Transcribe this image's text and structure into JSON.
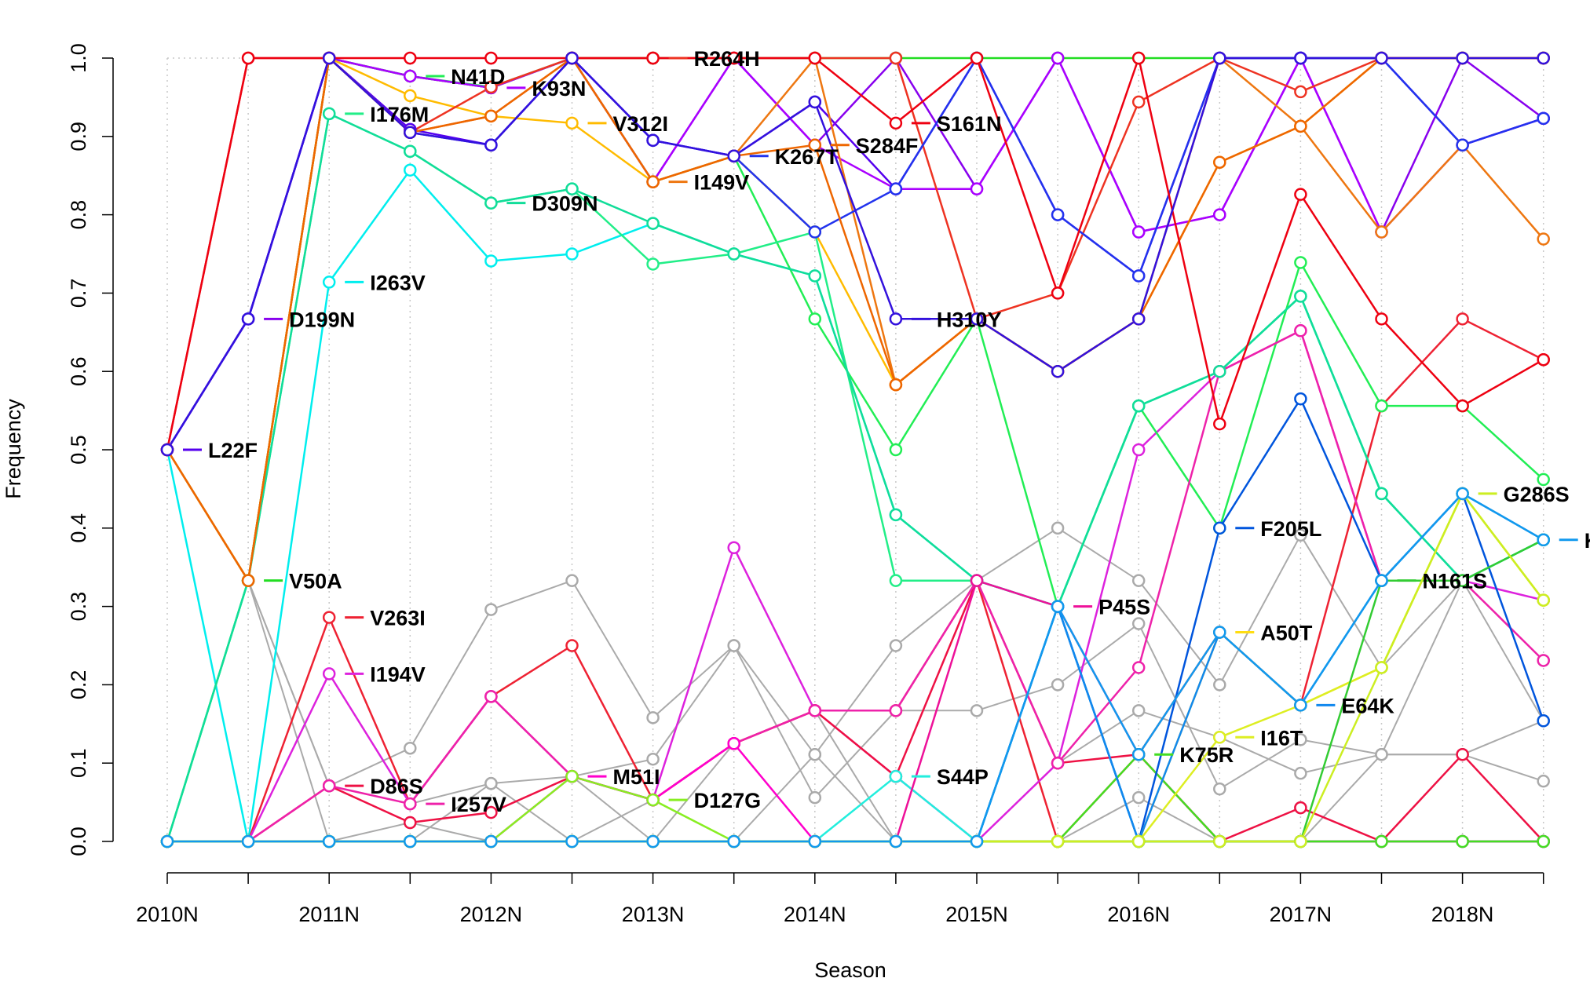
{
  "chart_data": {
    "type": "line",
    "title": "",
    "xlabel": "Season",
    "ylabel": "Frequency",
    "x_ticks": [
      "2010N",
      "2011N",
      "2012N",
      "2013N",
      "2014N",
      "2015N",
      "2016N",
      "2017N",
      "2018N"
    ],
    "y_ticks": [
      "0.0",
      "0.1",
      "0.2",
      "0.3",
      "0.4",
      "0.5",
      "0.6",
      "0.7",
      "0.8",
      "0.9",
      "1.0"
    ],
    "x_positions": 18,
    "ylim": [
      0,
      1
    ],
    "grid": "vertical dotted at each season position",
    "series": [
      {
        "name": "L22F",
        "color": "#5500ee",
        "label_at": 0,
        "values": [
          0.5,
          0.667,
          1.0,
          0.909,
          0.889,
          1.0,
          0.895,
          0.875,
          0.944,
          0.833,
          1.0,
          0.8,
          0.722,
          1.0,
          1.0,
          1.0,
          0.889,
          0.923
        ]
      },
      {
        "name": "D199N",
        "color": "#8800ee",
        "label_at": 1,
        "values": [
          0.5,
          0.667,
          1.0,
          0.977,
          0.962,
          1.0,
          0.842,
          1.0,
          0.889,
          1.0,
          0.833,
          1.0,
          0.778,
          0.8,
          1.0,
          0.778,
          1.0,
          0.923
        ]
      },
      {
        "name": "V50A",
        "color": "#22dd22",
        "label_at": 1,
        "values": [
          0.5,
          0.333,
          1.0,
          0.977,
          0.962,
          1.0,
          1.0,
          1.0,
          1.0,
          1.0,
          1.0,
          1.0,
          1.0,
          1.0,
          1.0,
          1.0,
          1.0,
          1.0
        ]
      },
      {
        "name": "I263V",
        "color": "#00eeee",
        "label_at": 2,
        "values": [
          0.5,
          0.0,
          0.714,
          0.857,
          0.741,
          0.75,
          0.789,
          0.75,
          0.722,
          0.417,
          0.333,
          0.3,
          0.556,
          0.6,
          0.696,
          0.444,
          0.333,
          0.385
        ]
      },
      {
        "name": "V263I",
        "color": "#ee2233",
        "label_at": 2,
        "values": [
          0.0,
          0.0,
          0.286,
          0.048,
          0.185,
          0.25,
          0.053,
          0.125,
          0.167,
          0.167,
          0.333,
          0.0,
          0.111,
          0.267,
          0.174,
          0.556,
          0.667,
          0.615
        ]
      },
      {
        "name": "I194V",
        "color": "#dd22dd",
        "label_at": 2,
        "values": [
          0.0,
          0.0,
          0.214,
          0.048,
          0.185,
          0.083,
          0.053,
          0.375,
          0.167,
          0.083,
          0.0,
          0.1,
          0.5,
          0.6,
          0.652,
          0.333,
          0.333,
          0.308
        ]
      },
      {
        "name": "D86S",
        "color": "#ee1144",
        "label_at": 2,
        "values": [
          0.0,
          0.0,
          0.071,
          0.024,
          0.037,
          0.083,
          0.053,
          0.125,
          0.167,
          0.083,
          0.333,
          0.1,
          0.111,
          0.0,
          0.043,
          0.0,
          0.111,
          0.0
        ]
      },
      {
        "name": "N41D",
        "color": "#22ee55",
        "label_at": 3,
        "values": [
          0.0,
          0.333,
          1.0,
          0.977,
          0.963,
          1.0,
          0.842,
          0.875,
          0.667,
          0.5,
          0.667,
          0.3,
          0.556,
          0.4,
          0.739,
          0.556,
          0.556,
          0.462
        ]
      },
      {
        "name": "I176M",
        "color": "#22ee88",
        "label_at": 2,
        "values": [
          0.0,
          0.333,
          0.929,
          0.881,
          0.815,
          0.833,
          0.737,
          0.75,
          0.778,
          0.333,
          0.333,
          0.3,
          0.556,
          0.6,
          0.696,
          0.444,
          0.333,
          0.385
        ]
      },
      {
        "name": "K93N",
        "color": "#aa00ff",
        "label_at": 4,
        "values": [
          0.5,
          0.667,
          1.0,
          0.977,
          0.962,
          1.0,
          0.842,
          1.0,
          0.889,
          0.833,
          0.833,
          1.0,
          0.778,
          0.8,
          1.0,
          0.778,
          0.889,
          0.923
        ]
      },
      {
        "name": "I257V",
        "color": "#ee22aa",
        "label_at": 3,
        "values": [
          0.0,
          0.0,
          0.071,
          0.048,
          0.185,
          0.083,
          0.053,
          0.125,
          0.167,
          0.167,
          0.333,
          0.1,
          0.222,
          0.6,
          0.652,
          0.333,
          0.333,
          0.231
        ]
      },
      {
        "name": "V312I",
        "color": "#ffbb00",
        "label_at": 5,
        "values": [
          0.5,
          0.333,
          1.0,
          0.952,
          0.926,
          0.917,
          0.842,
          0.875,
          0.778,
          0.583,
          0.667,
          0.6,
          0.667,
          0.867,
          0.913,
          1.0,
          1.0,
          1.0
        ]
      },
      {
        "name": "D309N",
        "color": "#11dd99",
        "label_at": 4,
        "values": [
          0.0,
          0.333,
          0.929,
          0.881,
          0.815,
          0.833,
          0.789,
          0.75,
          0.722,
          0.417,
          0.333,
          0.3,
          0.556,
          0.6,
          0.696,
          0.444,
          0.333,
          0.385
        ]
      },
      {
        "name": "R264H",
        "color": "#ee3322",
        "label_at": 6,
        "values": [
          0.5,
          1.0,
          1.0,
          0.905,
          0.963,
          1.0,
          1.0,
          1.0,
          1.0,
          1.0,
          0.667,
          0.7,
          0.944,
          1.0,
          0.957,
          1.0,
          1.0,
          1.0
        ]
      },
      {
        "name": "I149V",
        "color": "#ee7711",
        "label_at": 6,
        "values": [
          0.5,
          0.333,
          1.0,
          0.905,
          0.926,
          1.0,
          0.842,
          0.875,
          1.0,
          0.583,
          0.667,
          0.6,
          0.667,
          1.0,
          0.913,
          0.778,
          0.889,
          0.769
        ]
      },
      {
        "name": "K267T",
        "color": "#2233ee",
        "label_at": 7,
        "values": [
          0.5,
          0.667,
          1.0,
          0.905,
          0.889,
          1.0,
          0.895,
          0.875,
          0.778,
          0.833,
          1.0,
          0.8,
          0.722,
          1.0,
          1.0,
          1.0,
          0.889,
          0.923
        ]
      },
      {
        "name": "S284F",
        "color": "#ee6600",
        "label_at": 8,
        "values": [
          0.5,
          0.333,
          1.0,
          0.905,
          0.926,
          1.0,
          0.842,
          0.875,
          0.889,
          0.583,
          0.667,
          0.6,
          0.667,
          0.867,
          0.913,
          1.0,
          1.0,
          1.0
        ]
      },
      {
        "name": "S161N",
        "color": "#ee0011",
        "label_at": 9,
        "values": [
          0.5,
          1.0,
          1.0,
          1.0,
          1.0,
          1.0,
          1.0,
          1.0,
          1.0,
          0.917,
          1.0,
          0.7,
          1.0,
          0.533,
          0.826,
          0.667,
          0.556,
          0.615
        ]
      },
      {
        "name": "H310Y",
        "color": "#3311dd",
        "label_at": 9,
        "values": [
          0.5,
          0.667,
          1.0,
          0.905,
          0.889,
          1.0,
          0.895,
          0.875,
          0.944,
          0.667,
          0.667,
          0.6,
          0.667,
          1.0,
          1.0,
          1.0,
          1.0,
          1.0
        ]
      },
      {
        "name": "M51I",
        "color": "#ff00cc",
        "label_at": 5,
        "values": [
          0.0,
          0.0,
          0.0,
          0.0,
          0.0,
          0.083,
          0.053,
          0.125,
          0.0,
          0.0,
          0.0,
          0.0,
          0.0,
          0.0,
          0.0,
          0.0,
          0.0,
          0.0
        ]
      },
      {
        "name": "D127G",
        "color": "#88ee22",
        "label_at": 6,
        "values": [
          0.0,
          0.0,
          0.0,
          0.0,
          0.0,
          0.083,
          0.053,
          0.0,
          0.0,
          0.0,
          0.0,
          0.0,
          0.0,
          0.0,
          0.0,
          0.0,
          0.0,
          0.0
        ]
      },
      {
        "name": "S44P",
        "color": "#22eedd",
        "label_at": 9,
        "values": [
          0.0,
          0.0,
          0.0,
          0.0,
          0.0,
          0.0,
          0.0,
          0.0,
          0.0,
          0.083,
          0.0,
          0.3,
          0.0,
          0.0,
          0.0,
          0.0,
          0.0,
          0.0
        ]
      },
      {
        "name": "P45S",
        "color": "#ee1199",
        "label_at": 11,
        "values": [
          0.0,
          0.0,
          0.0,
          0.0,
          0.0,
          0.0,
          0.0,
          0.0,
          0.0,
          0.0,
          0.333,
          0.3,
          0.111,
          0.0,
          0.0,
          0.0,
          0.0,
          0.0
        ]
      },
      {
        "name": "K75R",
        "color": "#44dd22",
        "label_at": 12,
        "values": [
          0.0,
          0.0,
          0.0,
          0.0,
          0.0,
          0.0,
          0.0,
          0.0,
          0.0,
          0.0,
          0.0,
          0.0,
          0.111,
          0.0,
          0.0,
          0.0,
          0.0,
          0.0
        ]
      },
      {
        "name": "F205L",
        "color": "#0055dd",
        "label_at": 13,
        "values": [
          0.0,
          0.0,
          0.0,
          0.0,
          0.0,
          0.0,
          0.0,
          0.0,
          0.0,
          0.0,
          0.0,
          0.3,
          0.0,
          0.4,
          0.565,
          0.333,
          0.444,
          0.154
        ]
      },
      {
        "name": "A50T",
        "color": "#ffdd11",
        "label_at": 13,
        "values": [
          0.0,
          0.0,
          0.0,
          0.0,
          0.0,
          0.0,
          0.0,
          0.0,
          0.0,
          0.0,
          0.0,
          0.0,
          0.0,
          0.267,
          0.174,
          0.222,
          0.444,
          0.308
        ]
      },
      {
        "name": "I16T",
        "color": "#ddee22",
        "label_at": 13,
        "values": [
          0.0,
          0.0,
          0.0,
          0.0,
          0.0,
          0.0,
          0.0,
          0.0,
          0.0,
          0.0,
          0.0,
          0.0,
          0.0,
          0.133,
          0.174,
          0.222,
          0.444,
          0.308
        ]
      },
      {
        "name": "E64K",
        "color": "#1188ee",
        "label_at": 14,
        "values": [
          0.0,
          0.0,
          0.0,
          0.0,
          0.0,
          0.0,
          0.0,
          0.0,
          0.0,
          0.0,
          0.0,
          0.3,
          0.0,
          0.267,
          0.174,
          0.333,
          0.444,
          0.385
        ]
      },
      {
        "name": "N161S",
        "color": "#33cc33",
        "label_at": 15,
        "values": [
          0.0,
          0.0,
          0.0,
          0.0,
          0.0,
          0.0,
          0.0,
          0.0,
          0.0,
          0.0,
          0.0,
          0.0,
          0.0,
          0.0,
          0.0,
          0.333,
          0.333,
          0.385
        ]
      },
      {
        "name": "G286S",
        "color": "#ccee22",
        "label_at": 16,
        "values": [
          0.0,
          0.0,
          0.0,
          0.0,
          0.0,
          0.0,
          0.0,
          0.0,
          0.0,
          0.0,
          0.0,
          0.0,
          0.0,
          0.0,
          0.0,
          0.222,
          0.444,
          0.308
        ]
      },
      {
        "name": "K",
        "color": "#1199ee",
        "label_at": 17,
        "values": [
          0.0,
          0.0,
          0.0,
          0.0,
          0.0,
          0.0,
          0.0,
          0.0,
          0.0,
          0.0,
          0.0,
          0.3,
          0.111,
          0.267,
          0.174,
          0.333,
          0.444,
          0.385
        ]
      }
    ],
    "background_series": {
      "color": "#aaaaaa",
      "series": [
        [
          0.0,
          0.333,
          0.071,
          0.119,
          0.296,
          0.333,
          0.158,
          0.25,
          0.111,
          0.25,
          0.333,
          0.4,
          0.333,
          0.2,
          0.391,
          0.222,
          0.333,
          0.231
        ],
        [
          0.0,
          0.333,
          0.071,
          0.048,
          0.074,
          0.083,
          0.105,
          0.25,
          0.056,
          0.167,
          0.167,
          0.2,
          0.278,
          0.067,
          0.13,
          0.111,
          0.111,
          0.154
        ],
        [
          0.0,
          0.0,
          0.0,
          0.024,
          0.0,
          0.083,
          0.0,
          0.125,
          0.167,
          0.0,
          0.333,
          0.1,
          0.167,
          0.133,
          0.087,
          0.111,
          0.111,
          0.077
        ],
        [
          0.5,
          0.333,
          0.0,
          0.0,
          0.0,
          0.0,
          0.0,
          0.0,
          0.0,
          0.0,
          0.0,
          0.0,
          0.056,
          0.0,
          0.043,
          0.0,
          0.0,
          0.0
        ],
        [
          0.0,
          0.0,
          0.0,
          0.0,
          0.074,
          0.0,
          0.053,
          0.0,
          0.111,
          0.0,
          0.0,
          0.0,
          0.111,
          0.0,
          0.0,
          0.111,
          0.333,
          0.154
        ]
      ]
    }
  }
}
